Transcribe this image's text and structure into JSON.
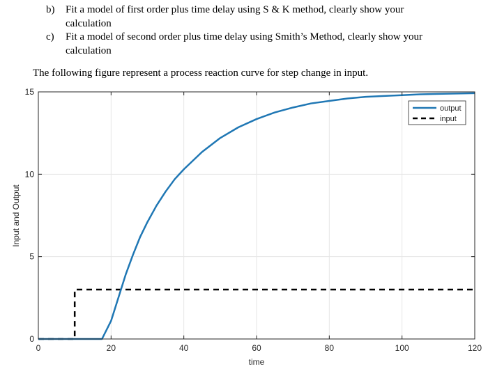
{
  "questions": [
    {
      "marker": "b)",
      "line1": "Fit a model of first order plus time delay using S & K method, clearly show your",
      "line2": "calculation"
    },
    {
      "marker": "c)",
      "line1": "Fit a model of second order plus time delay using Smith’s Method, clearly show your",
      "line2": "calculation"
    }
  ],
  "intro": "The following figure represent a process reaction curve for step change in input.",
  "chart_data": {
    "type": "line",
    "xlabel": "time",
    "ylabel": "Input and Output",
    "xlim": [
      0,
      120
    ],
    "ylim": [
      0,
      15
    ],
    "xticks": [
      0,
      20,
      40,
      60,
      80,
      100,
      120
    ],
    "yticks": [
      0,
      5,
      10,
      15
    ],
    "grid": true,
    "legend_position": "top-right",
    "colors": {
      "output": "#1f77b4",
      "input": "#000000"
    },
    "series": [
      {
        "name": "output",
        "style": "solid",
        "x": [
          0,
          10,
          17.5,
          20,
          22,
          24,
          26,
          28,
          30,
          32.5,
          35,
          37.5,
          40,
          45,
          50,
          55,
          60,
          65,
          70,
          75,
          80,
          85,
          90,
          95,
          100,
          105,
          110,
          115,
          120
        ],
        "y": [
          0,
          0,
          0,
          1.1,
          2.5,
          3.9,
          5.1,
          6.2,
          7.1,
          8.1,
          8.95,
          9.7,
          10.3,
          11.35,
          12.2,
          12.85,
          13.35,
          13.75,
          14.05,
          14.3,
          14.45,
          14.6,
          14.7,
          14.75,
          14.8,
          14.85,
          14.88,
          14.9,
          14.92
        ]
      },
      {
        "name": "input",
        "style": "dashed",
        "x": [
          0,
          10,
          10,
          120
        ],
        "y": [
          0,
          0,
          3,
          3
        ]
      }
    ]
  }
}
